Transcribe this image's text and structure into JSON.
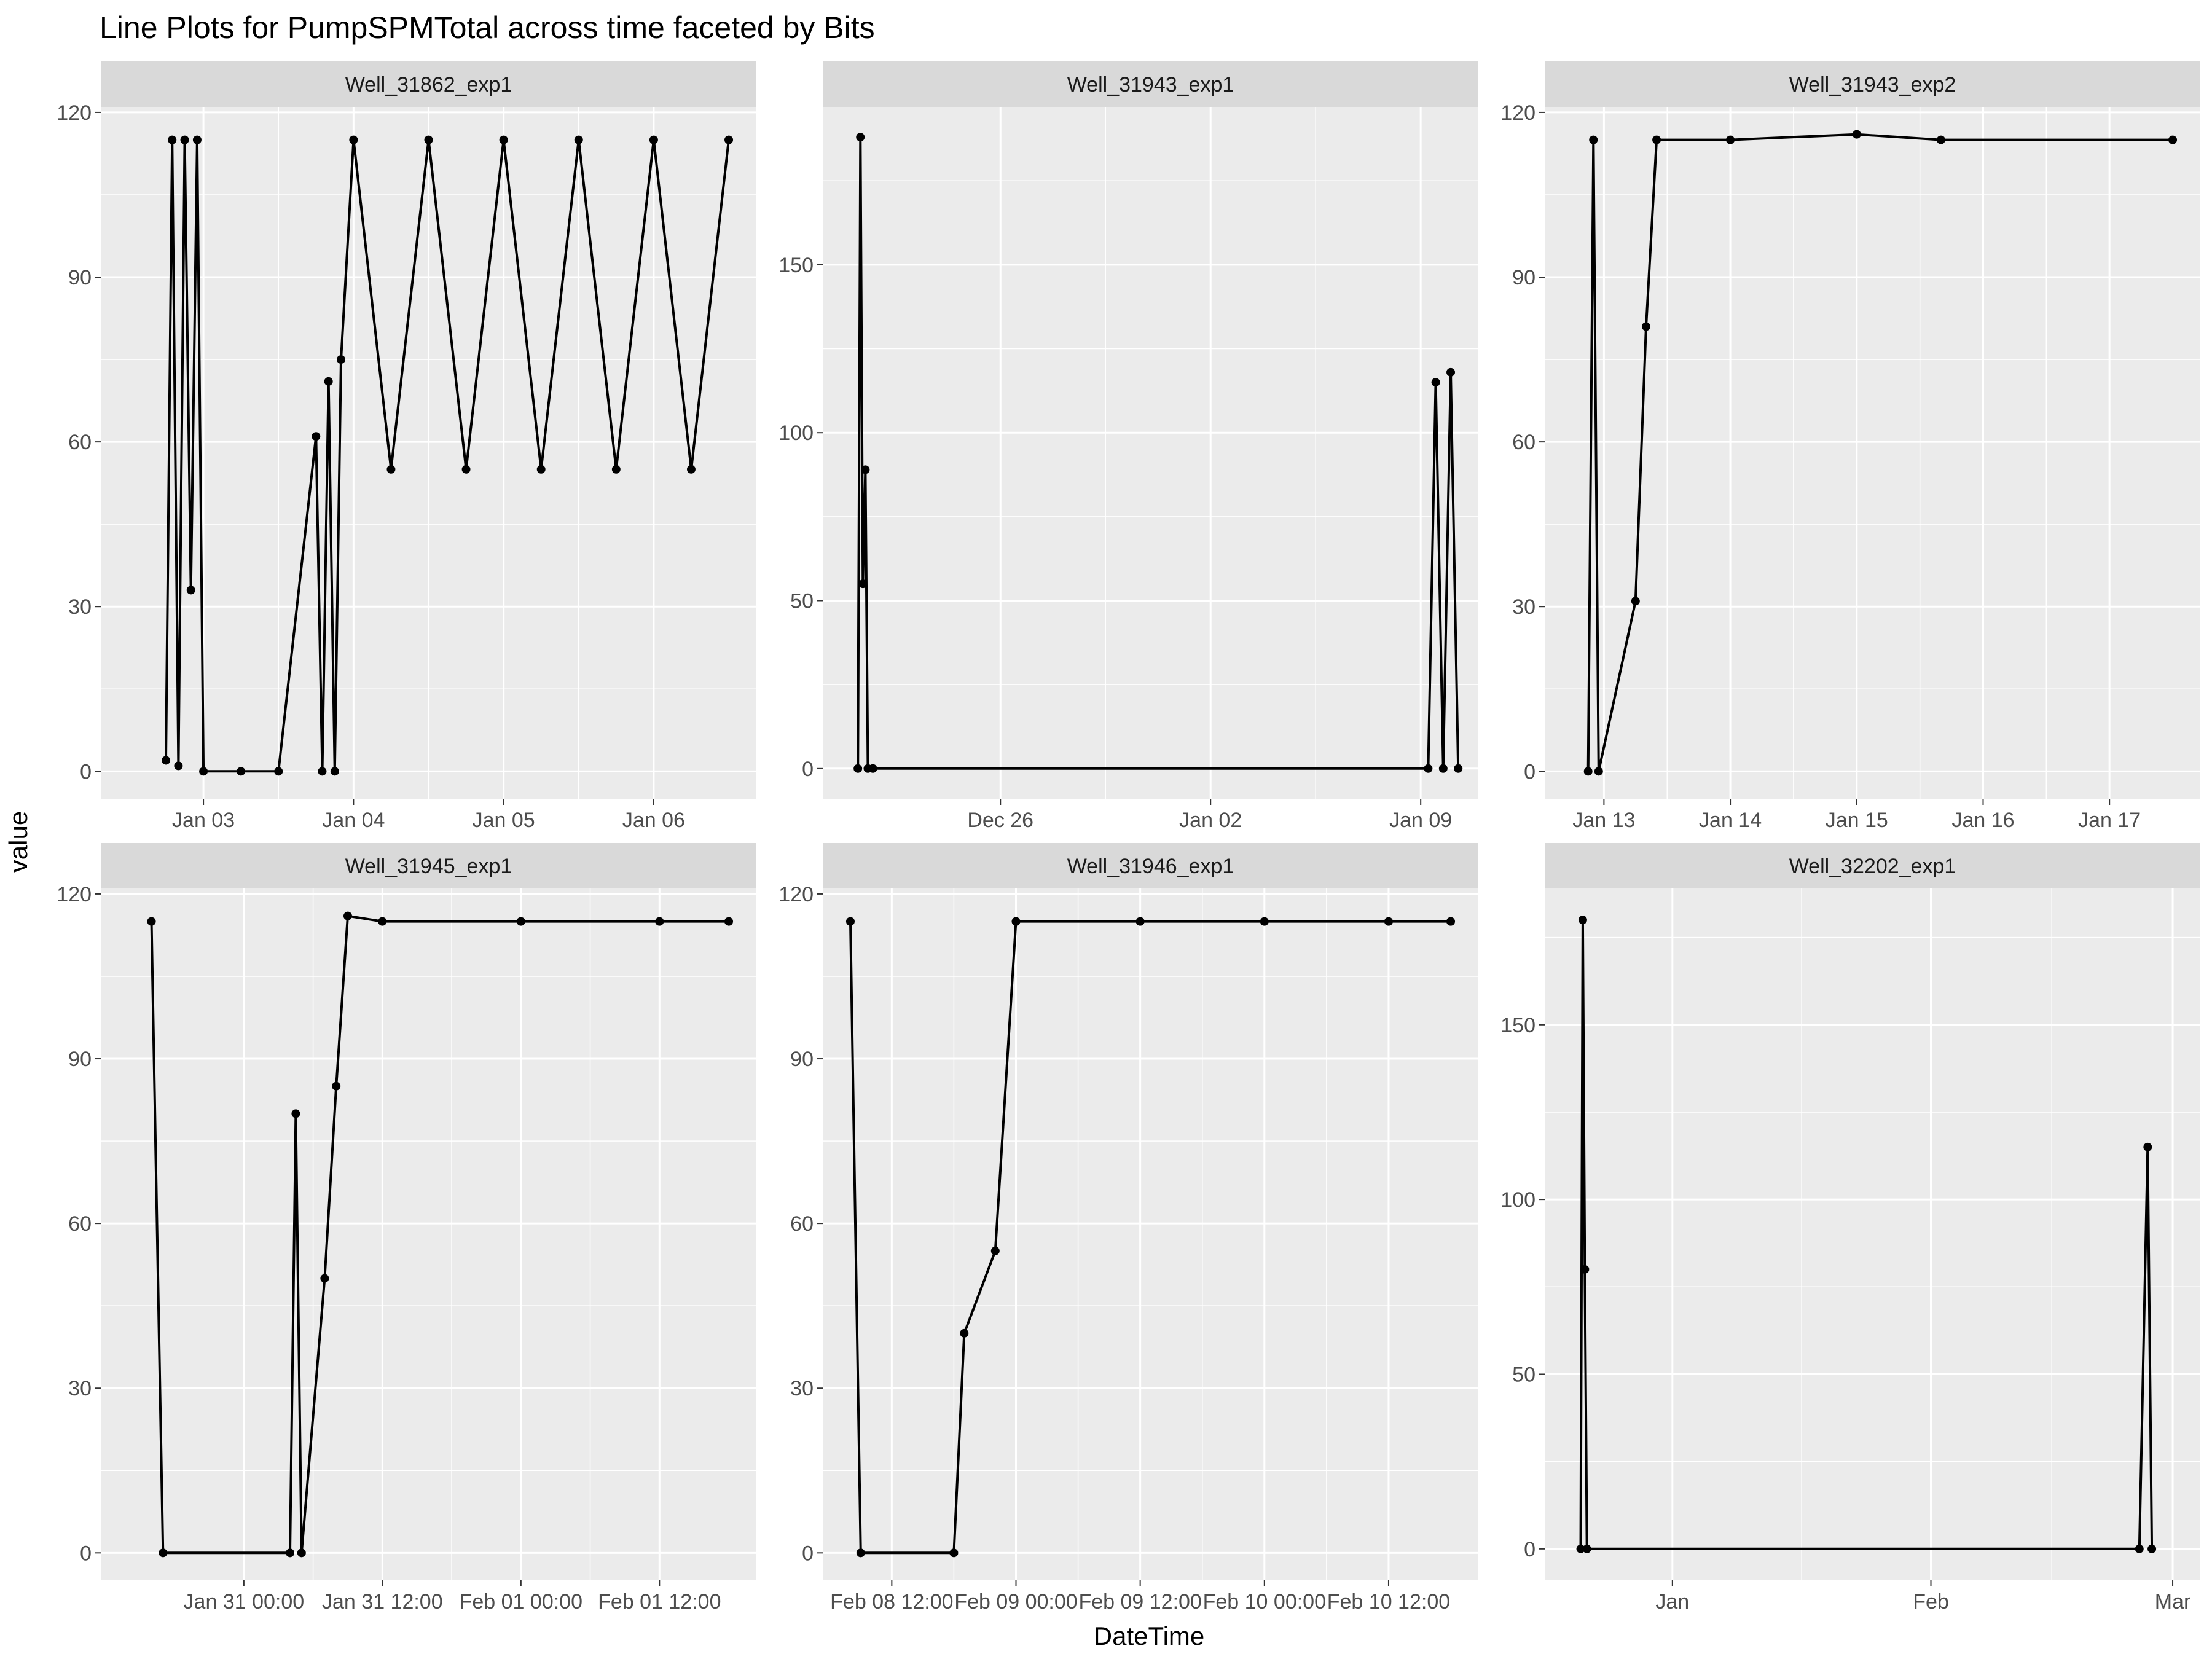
{
  "chart_data": {
    "type": "line",
    "title": "Line Plots for  PumpSPMTotal  across time faceted by Bits",
    "xlabel": "DateTime",
    "ylabel": "value",
    "grid": true,
    "colors": {
      "panel_bg": "#EBEBEB",
      "strip_bg": "#D9D9D9",
      "grid": "#FFFFFF",
      "data": "#000000",
      "tick_text": "#4D4D4D"
    },
    "facets": [
      {
        "label": "Well_31862_exp1",
        "x_ticks": [
          "Jan 03",
          "Jan 04",
          "Jan 05",
          "Jan 06"
        ],
        "x_range": [
          "Jan 02 12:00",
          "Jan 06 12:00"
        ],
        "ylim": [
          -5,
          121
        ],
        "y_ticks": [
          0,
          30,
          60,
          90,
          120
        ],
        "series": [
          {
            "points": [
              {
                "x": "Jan 02 18:00",
                "y": 2
              },
              {
                "x": "Jan 02 19:00",
                "y": 115
              },
              {
                "x": "Jan 02 20:00",
                "y": 1
              },
              {
                "x": "Jan 02 21:00",
                "y": 115
              },
              {
                "x": "Jan 02 22:00",
                "y": 33
              },
              {
                "x": "Jan 02 23:00",
                "y": 115
              },
              {
                "x": "Jan 03 00:00",
                "y": 0
              },
              {
                "x": "Jan 03 06:00",
                "y": 0
              },
              {
                "x": "Jan 03 12:00",
                "y": 0
              },
              {
                "x": "Jan 03 18:00",
                "y": 61
              },
              {
                "x": "Jan 03 19:00",
                "y": 0
              },
              {
                "x": "Jan 03 20:00",
                "y": 71
              },
              {
                "x": "Jan 03 21:00",
                "y": 0
              },
              {
                "x": "Jan 03 22:00",
                "y": 75
              },
              {
                "x": "Jan 04 00:00",
                "y": 115
              },
              {
                "x": "Jan 04 06:00",
                "y": 55
              },
              {
                "x": "Jan 04 12:00",
                "y": 115
              },
              {
                "x": "Jan 04 18:00",
                "y": 55
              },
              {
                "x": "Jan 05 00:00",
                "y": 115
              },
              {
                "x": "Jan 05 06:00",
                "y": 55
              },
              {
                "x": "Jan 05 12:00",
                "y": 115
              },
              {
                "x": "Jan 05 18:00",
                "y": 55
              },
              {
                "x": "Jan 06 00:00",
                "y": 115
              },
              {
                "x": "Jan 06 06:00",
                "y": 55
              },
              {
                "x": "Jan 06 12:00",
                "y": 115
              }
            ]
          }
        ]
      },
      {
        "label": "Well_31943_exp1",
        "x_ticks": [
          "Dec 26",
          "Jan 02",
          "Jan 09"
        ],
        "x_range": [
          "Dec 21",
          "Jan 10"
        ],
        "ylim": [
          -9,
          197
        ],
        "y_ticks": [
          0,
          50,
          100,
          150
        ],
        "series": [
          {
            "points": [
              {
                "x": "Dec 21 06:00",
                "y": 0
              },
              {
                "x": "Dec 21 08:00",
                "y": 188
              },
              {
                "x": "Dec 21 10:00",
                "y": 55
              },
              {
                "x": "Dec 21 12:00",
                "y": 89
              },
              {
                "x": "Dec 21 14:00",
                "y": 0
              },
              {
                "x": "Dec 21 18:00",
                "y": 0
              },
              {
                "x": "Jan 09 06:00",
                "y": 0
              },
              {
                "x": "Jan 09 12:00",
                "y": 115
              },
              {
                "x": "Jan 09 18:00",
                "y": 0
              },
              {
                "x": "Jan 10 00:00",
                "y": 118
              },
              {
                "x": "Jan 10 06:00",
                "y": 0
              }
            ]
          }
        ]
      },
      {
        "label": "Well_31943_exp2",
        "x_ticks": [
          "Jan 13",
          "Jan 14",
          "Jan 15",
          "Jan 16",
          "Jan 17"
        ],
        "x_range": [
          "Jan 12 18:00",
          "Jan 17 12:00"
        ],
        "ylim": [
          -5,
          121
        ],
        "y_ticks": [
          0,
          30,
          60,
          90,
          120
        ],
        "series": [
          {
            "points": [
              {
                "x": "Jan 12 21:00",
                "y": 0
              },
              {
                "x": "Jan 12 22:00",
                "y": 115
              },
              {
                "x": "Jan 12 23:00",
                "y": 0
              },
              {
                "x": "Jan 13 06:00",
                "y": 31
              },
              {
                "x": "Jan 13 08:00",
                "y": 81
              },
              {
                "x": "Jan 13 10:00",
                "y": 115
              },
              {
                "x": "Jan 14 00:00",
                "y": 115
              },
              {
                "x": "Jan 15 00:00",
                "y": 116
              },
              {
                "x": "Jan 15 16:00",
                "y": 115
              },
              {
                "x": "Jan 17 12:00",
                "y": 115
              }
            ]
          }
        ]
      },
      {
        "label": "Well_31945_exp1",
        "x_ticks": [
          "Jan 31 00:00",
          "Jan 31 12:00",
          "Feb 01 00:00",
          "Feb 01 12:00"
        ],
        "x_range": [
          "Jan 30 14:00",
          "Feb 01 18:00"
        ],
        "ylim": [
          -5,
          121
        ],
        "y_ticks": [
          0,
          30,
          60,
          90,
          120
        ],
        "series": [
          {
            "points": [
              {
                "x": "Jan 30 16:00",
                "y": 115
              },
              {
                "x": "Jan 30 17:00",
                "y": 0
              },
              {
                "x": "Jan 31 04:00",
                "y": 0
              },
              {
                "x": "Jan 31 04:30",
                "y": 80
              },
              {
                "x": "Jan 31 05:00",
                "y": 0
              },
              {
                "x": "Jan 31 07:00",
                "y": 50
              },
              {
                "x": "Jan 31 08:00",
                "y": 85
              },
              {
                "x": "Jan 31 09:00",
                "y": 116
              },
              {
                "x": "Jan 31 12:00",
                "y": 115
              },
              {
                "x": "Feb 01 00:00",
                "y": 115
              },
              {
                "x": "Feb 01 12:00",
                "y": 115
              },
              {
                "x": "Feb 01 18:00",
                "y": 115
              }
            ]
          }
        ]
      },
      {
        "label": "Well_31946_exp1",
        "x_ticks": [
          "Feb 08 12:00",
          "Feb 09 00:00",
          "Feb 09 12:00",
          "Feb 10 00:00",
          "Feb 10 12:00"
        ],
        "x_range": [
          "Feb 08 08:00",
          "Feb 10 18:00"
        ],
        "ylim": [
          -5,
          121
        ],
        "y_ticks": [
          0,
          30,
          60,
          90,
          120
        ],
        "series": [
          {
            "points": [
              {
                "x": "Feb 08 08:00",
                "y": 115
              },
              {
                "x": "Feb 08 09:00",
                "y": 0
              },
              {
                "x": "Feb 08 18:00",
                "y": 0
              },
              {
                "x": "Feb 08 19:00",
                "y": 40
              },
              {
                "x": "Feb 08 22:00",
                "y": 55
              },
              {
                "x": "Feb 09 00:00",
                "y": 115
              },
              {
                "x": "Feb 09 12:00",
                "y": 115
              },
              {
                "x": "Feb 10 00:00",
                "y": 115
              },
              {
                "x": "Feb 10 12:00",
                "y": 115
              },
              {
                "x": "Feb 10 18:00",
                "y": 115
              }
            ]
          }
        ]
      },
      {
        "label": "Well_32202_exp1",
        "x_ticks": [
          "Jan",
          "Feb",
          "Mar"
        ],
        "x_range": [
          "Dec 20",
          "Mar 01"
        ],
        "ylim": [
          -9,
          189
        ],
        "y_ticks": [
          0,
          50,
          100,
          150
        ],
        "series": [
          {
            "points": [
              {
                "x": "Dec 21",
                "y": 0
              },
              {
                "x": "Dec 21 06:00",
                "y": 180
              },
              {
                "x": "Dec 21 12:00",
                "y": 80
              },
              {
                "x": "Dec 21 18:00",
                "y": 0
              },
              {
                "x": "Feb 26",
                "y": 0
              },
              {
                "x": "Feb 27",
                "y": 115
              },
              {
                "x": "Feb 27 12:00",
                "y": 0
              }
            ]
          }
        ]
      }
    ]
  }
}
